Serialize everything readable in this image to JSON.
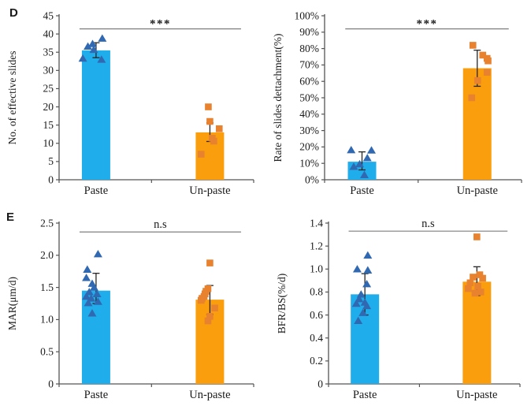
{
  "figure": {
    "background": "#FFFFFF"
  },
  "panels": [
    {
      "label": "D"
    },
    {
      "label": "E"
    }
  ],
  "colors": {
    "paste_bar": "#20ADEC",
    "unpaste_bar": "#FB9E0D",
    "paste_marker": "#3069B1",
    "unpaste_marker": "#E8822F",
    "axis": "#555555",
    "error": "#262626",
    "sig_line": "#7F7F7F",
    "text": "#1A1A1A"
  },
  "chart_data": [
    {
      "id": "effective-slides",
      "panel": "D",
      "type": "bar",
      "title": "",
      "xlabel": "",
      "ylabel": "No. of effective slides",
      "ylim": [
        0,
        45
      ],
      "yticks": [
        0,
        5,
        10,
        15,
        20,
        25,
        30,
        35,
        40,
        45
      ],
      "ytick_labels": [
        "0",
        "5",
        "10",
        "15",
        "20",
        "25",
        "30",
        "35",
        "40",
        "45"
      ],
      "categories": [
        "Paste",
        "Un-paste"
      ],
      "significance": "***",
      "grid": false,
      "legend": "none",
      "series": [
        {
          "name": "Paste",
          "marker": "triangle",
          "mean": 35.5,
          "error_low": 33.5,
          "error_high": 37.6,
          "points": [
            38.8,
            37.3,
            36.6,
            35.7,
            33.3,
            33.0
          ],
          "point_offsets": [
            0.032,
            -0.018,
            -0.042,
            -0.012,
            -0.068,
            0.028
          ]
        },
        {
          "name": "Un-paste",
          "marker": "square",
          "mean": 13,
          "error_low": 10.5,
          "error_high": 15.6,
          "points": [
            20,
            16,
            14,
            11.4,
            10.6,
            7
          ],
          "point_offsets": [
            -0.008,
            0.0,
            0.048,
            0.012,
            0.02,
            -0.045
          ]
        }
      ]
    },
    {
      "id": "slides-detachment",
      "panel": "D",
      "type": "bar",
      "title": "",
      "xlabel": "",
      "ylabel": "Rate of slides dettachment(%)",
      "ylim": [
        0,
        100
      ],
      "yticks": [
        0,
        10,
        20,
        30,
        40,
        50,
        60,
        70,
        80,
        90,
        100
      ],
      "ytick_labels": [
        "0%",
        "10%",
        "20%",
        "30%",
        "40%",
        "50%",
        "60%",
        "70%",
        "80%",
        "90%",
        "100%"
      ],
      "categories": [
        "Paste",
        "Un-paste"
      ],
      "significance": "***",
      "grid": false,
      "legend": "none",
      "series": [
        {
          "name": "Paste",
          "marker": "triangle",
          "mean": 11,
          "error_low": 6,
          "error_high": 17,
          "points": [
            18.2,
            18.0,
            13.3,
            9.6,
            8.0,
            3.0
          ],
          "point_offsets": [
            -0.055,
            0.048,
            0.027,
            -0.012,
            -0.042,
            0.012
          ]
        },
        {
          "name": "Un-paste",
          "marker": "square",
          "mean": 68,
          "error_low": 57,
          "error_high": 79,
          "points": [
            82,
            76,
            74,
            72.5,
            65.5,
            60.5,
            50
          ],
          "point_offsets": [
            -0.022,
            0.028,
            0.05,
            0.055,
            0.05,
            0.002,
            -0.028
          ]
        }
      ]
    },
    {
      "id": "mar",
      "panel": "E",
      "type": "bar",
      "title": "",
      "xlabel": "",
      "ylabel": "MAR(μm/d)",
      "ylim": [
        0,
        2.5
      ],
      "yticks": [
        0,
        0.5,
        1.0,
        1.5,
        2.0,
        2.5
      ],
      "ytick_labels": [
        "0",
        "0.5",
        "1.0",
        "1.5",
        "2.0",
        "2.5"
      ],
      "categories": [
        "Paste",
        "Un-paste"
      ],
      "significance": "n.s",
      "grid": false,
      "legend": "none",
      "series": [
        {
          "name": "Paste",
          "marker": "triangle",
          "mean": 1.45,
          "error_low": 1.25,
          "error_high": 1.72,
          "points": [
            2.02,
            1.78,
            1.65,
            1.56,
            1.5,
            1.43,
            1.4,
            1.36,
            1.33,
            1.28,
            1.26,
            1.1
          ],
          "point_offsets": [
            0.01,
            -0.045,
            -0.05,
            -0.02,
            -0.01,
            -0.035,
            0.005,
            -0.05,
            -0.025,
            0.01,
            -0.04,
            -0.02
          ]
        },
        {
          "name": "Un-paste",
          "marker": "square",
          "mean": 1.31,
          "error_low": 1.08,
          "error_high": 1.53,
          "points": [
            1.88,
            1.48,
            1.44,
            1.4,
            1.36,
            1.33,
            1.3,
            1.18,
            1.05,
            0.98
          ],
          "point_offsets": [
            0.0,
            -0.01,
            -0.02,
            -0.025,
            -0.03,
            -0.04,
            -0.045,
            0.025,
            0.0,
            -0.01
          ]
        }
      ]
    },
    {
      "id": "bfr-bs",
      "panel": "E",
      "type": "bar",
      "title": "",
      "xlabel": "",
      "ylabel": "BFR/BS(%/d)",
      "ylim": [
        0,
        1.4
      ],
      "yticks": [
        0,
        0.2,
        0.4,
        0.6,
        0.8,
        1.0,
        1.2,
        1.4
      ],
      "ytick_labels": [
        "0",
        "0.2",
        "0.4",
        "0.6",
        "0.8",
        "1.0",
        "1.2",
        "1.4"
      ],
      "categories": [
        "Paste",
        "Un-paste"
      ],
      "significance": "n.s",
      "grid": false,
      "legend": "none",
      "series": [
        {
          "name": "Paste",
          "marker": "triangle",
          "mean": 0.78,
          "error_low": 0.6,
          "error_high": 0.96,
          "points": [
            1.12,
            1.0,
            0.99,
            0.87,
            0.78,
            0.74,
            0.71,
            0.7,
            0.68,
            0.62,
            0.55
          ],
          "point_offsets": [
            0.015,
            -0.04,
            0.015,
            0.01,
            -0.02,
            -0.03,
            0.0,
            -0.045,
            0.01,
            -0.01,
            -0.035
          ]
        },
        {
          "name": "Un-paste",
          "marker": "square",
          "mean": 0.89,
          "error_low": 0.77,
          "error_high": 1.02,
          "points": [
            1.28,
            0.95,
            0.93,
            0.92,
            0.88,
            0.85,
            0.83,
            0.8,
            0.79
          ],
          "point_offsets": [
            0.0,
            0.015,
            -0.02,
            0.03,
            -0.035,
            0.005,
            -0.045,
            0.02,
            -0.01
          ]
        }
      ]
    }
  ]
}
